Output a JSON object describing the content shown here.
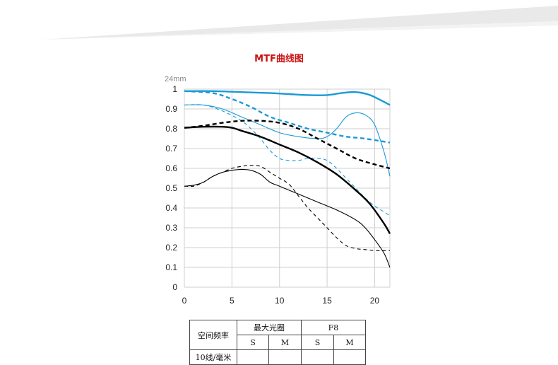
{
  "page": {
    "title": "MTF曲线图"
  },
  "chart_data": {
    "type": "line",
    "title": "MTF曲线图",
    "focal_label": "24mm",
    "xlim": [
      0,
      21.6
    ],
    "ylim": [
      0,
      1
    ],
    "x_ticks": [
      "0",
      "5",
      "10",
      "15",
      "20"
    ],
    "x_tick_values": [
      0,
      5,
      10,
      15,
      20
    ],
    "y_ticks": [
      "0",
      "0.1",
      "0.2",
      "0.3",
      "0.4",
      "0.5",
      "0.6",
      "0.7",
      "0.8",
      "0.9",
      "1"
    ],
    "y_tick_values": [
      0,
      0.1,
      0.2,
      0.3,
      0.4,
      0.5,
      0.6,
      0.7,
      0.8,
      0.9,
      1.0
    ],
    "grid": true,
    "series": [
      {
        "color": "#1a9ad6",
        "weight": "thick",
        "style": "solid",
        "x": [
          0,
          3,
          6,
          9,
          11,
          13,
          15,
          16.5,
          18,
          19.5,
          21.6
        ],
        "y": [
          0.99,
          0.99,
          0.985,
          0.98,
          0.975,
          0.97,
          0.97,
          0.98,
          0.985,
          0.97,
          0.92
        ]
      },
      {
        "color": "#1a9ad6",
        "weight": "thick",
        "style": "dashed",
        "x": [
          0,
          3,
          5,
          7,
          9,
          11,
          13,
          15,
          17,
          19,
          21.6
        ],
        "y": [
          0.99,
          0.98,
          0.95,
          0.91,
          0.86,
          0.83,
          0.8,
          0.78,
          0.76,
          0.75,
          0.73
        ]
      },
      {
        "color": "#1a9ad6",
        "weight": "thin",
        "style": "solid",
        "x": [
          0,
          2,
          4,
          6,
          8,
          10,
          12,
          14,
          15,
          16,
          17,
          18,
          19,
          20,
          21,
          21.6
        ],
        "y": [
          0.92,
          0.92,
          0.9,
          0.86,
          0.82,
          0.78,
          0.76,
          0.75,
          0.76,
          0.8,
          0.86,
          0.88,
          0.87,
          0.82,
          0.68,
          0.56
        ]
      },
      {
        "color": "#1a9ad6",
        "weight": "thin",
        "style": "dashed",
        "x": [
          0,
          2,
          4,
          6,
          7,
          8,
          9,
          10,
          11,
          12,
          13,
          14,
          15,
          16,
          17,
          18,
          19,
          20,
          21,
          21.6
        ],
        "y": [
          0.92,
          0.92,
          0.89,
          0.84,
          0.8,
          0.75,
          0.69,
          0.65,
          0.64,
          0.64,
          0.65,
          0.65,
          0.64,
          0.6,
          0.55,
          0.5,
          0.45,
          0.41,
          0.38,
          0.36
        ]
      },
      {
        "color": "#000000",
        "weight": "thick",
        "style": "solid",
        "x": [
          0,
          2,
          4,
          5,
          6,
          8,
          10,
          12,
          14,
          16,
          18,
          19.5,
          21,
          21.6
        ],
        "y": [
          0.805,
          0.81,
          0.81,
          0.805,
          0.79,
          0.76,
          0.72,
          0.68,
          0.63,
          0.57,
          0.49,
          0.42,
          0.32,
          0.27
        ]
      },
      {
        "color": "#000000",
        "weight": "thick",
        "style": "dashed",
        "x": [
          0,
          2,
          4,
          6,
          8,
          10,
          12,
          14,
          16,
          18,
          20,
          21.6
        ],
        "y": [
          0.805,
          0.815,
          0.83,
          0.84,
          0.84,
          0.83,
          0.8,
          0.75,
          0.7,
          0.65,
          0.62,
          0.6
        ]
      },
      {
        "color": "#000000",
        "weight": "thin",
        "style": "solid",
        "x": [
          0,
          1,
          2,
          3,
          4,
          5,
          6,
          7,
          8,
          9,
          10,
          12,
          14,
          16,
          18,
          19,
          20,
          21,
          21.6
        ],
        "y": [
          0.51,
          0.515,
          0.53,
          0.56,
          0.58,
          0.59,
          0.595,
          0.59,
          0.57,
          0.53,
          0.51,
          0.47,
          0.43,
          0.39,
          0.34,
          0.3,
          0.24,
          0.17,
          0.1
        ]
      },
      {
        "color": "#000000",
        "weight": "thin",
        "style": "dashed",
        "x": [
          0,
          1,
          2,
          3,
          4,
          5,
          6,
          7,
          8,
          9,
          10,
          11,
          12,
          13,
          14,
          15,
          16,
          17,
          18,
          19,
          20,
          21.6
        ],
        "y": [
          0.51,
          0.51,
          0.53,
          0.56,
          0.58,
          0.6,
          0.61,
          0.615,
          0.61,
          0.58,
          0.55,
          0.52,
          0.46,
          0.4,
          0.35,
          0.3,
          0.25,
          0.21,
          0.195,
          0.19,
          0.185,
          0.185
        ]
      }
    ]
  },
  "spec_table": {
    "header_left": "空间频率",
    "group1": "最大光圈",
    "group2": "F8",
    "sub": [
      "S",
      "M",
      "S",
      "M"
    ],
    "row1_label": "10线/毫米"
  }
}
